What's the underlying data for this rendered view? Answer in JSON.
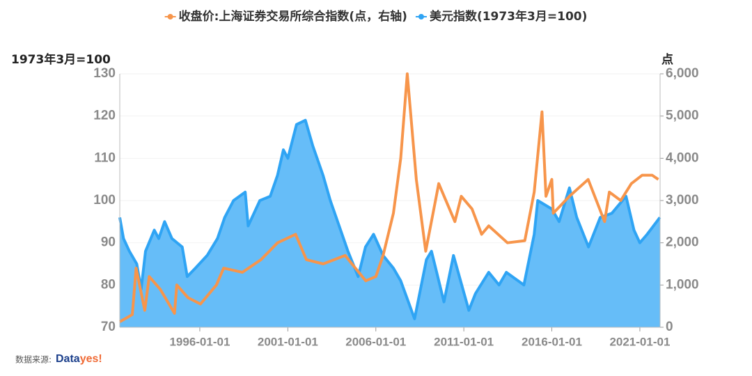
{
  "chart_data": {
    "type": "line",
    "legend_position": "top",
    "ylabel": "1973年3月=100",
    "y2label": "点",
    "source": "数据来源:",
    "source_logo": [
      "Data",
      "yes!"
    ],
    "xlim": [
      "1991-06-15",
      "2022-02-25"
    ],
    "xticks": [
      "1996-01-01",
      "2001-01-01",
      "2006-01-01",
      "2011-01-01",
      "2016-01-01",
      "2021-01-01"
    ],
    "ylim": [
      70,
      130
    ],
    "yticks": [
      70,
      80,
      90,
      100,
      110,
      120,
      130
    ],
    "y2lim": [
      0,
      6000
    ],
    "y2ticks": [
      0,
      {
        "value": 1000,
        "label": "1,000"
      },
      {
        "value": 2000,
        "label": "2,000"
      },
      {
        "value": 3000,
        "label": "3,000"
      },
      {
        "value": 4000,
        "label": "4,000"
      },
      {
        "value": 5000,
        "label": "5,000"
      },
      {
        "value": 6000,
        "label": "6,000"
      }
    ],
    "series": [
      {
        "name": "收盘价:上海证券交易所综合指数(点，右轴)",
        "color": "#f7954b",
        "axis": "y2",
        "x": [
          "1991-06-15",
          "1992-03-01",
          "1992-05-20",
          "1992-11-15",
          "1993-02-15",
          "1993-10-01",
          "1994-07-25",
          "1994-09-10",
          "1995-05-01",
          "1996-01-15",
          "1996-12-10",
          "1997-05-10",
          "1998-06-01",
          "1999-06-25",
          "2000-06-01",
          "2001-06-10",
          "2002-01-20",
          "2003-01-05",
          "2004-04-05",
          "2005-06-05",
          "2006-01-01",
          "2006-06-01",
          "2007-01-01",
          "2007-06-01",
          "2007-10-16",
          "2008-04-20",
          "2008-11-01",
          "2009-07-30",
          "2010-06-30",
          "2010-11-10",
          "2011-06-20",
          "2012-01-05",
          "2012-06-01",
          "2013-06-25",
          "2014-06-20",
          "2014-12-31",
          "2015-06-12",
          "2015-09-01",
          "2016-01-01",
          "2016-02-01",
          "2017-01-01",
          "2018-01-25",
          "2018-12-31",
          "2019-04-08",
          "2019-12-01",
          "2020-07-08",
          "2021-02-18",
          "2021-09-13",
          "2022-01-20"
        ],
        "values": [
          130,
          300,
          1400,
          400,
          1200,
          900,
          330,
          1000,
          700,
          550,
          1000,
          1400,
          1300,
          1600,
          2000,
          2200,
          1600,
          1500,
          1700,
          1100,
          1200,
          1700,
          2700,
          4000,
          6000,
          3500,
          1800,
          3400,
          2500,
          3100,
          2800,
          2200,
          2400,
          2000,
          2050,
          3200,
          5100,
          3100,
          3500,
          2700,
          3100,
          3500,
          2500,
          3200,
          3000,
          3400,
          3600,
          3600,
          3500
        ]
      },
      {
        "name": "美元指数(1973年3月=100)",
        "color": "#2fa4f4",
        "fill": "#66bdf8",
        "x": [
          "1991-06-15",
          "1991-09-01",
          "1992-01-01",
          "1992-06-01",
          "1992-09-01",
          "1992-12-01",
          "1993-06-01",
          "1993-09-01",
          "1994-01-01",
          "1994-06-01",
          "1995-01-01",
          "1995-04-15",
          "1995-10-01",
          "1996-06-01",
          "1997-01-01",
          "1997-06-01",
          "1997-12-01",
          "1998-08-01",
          "1998-10-01",
          "1999-06-01",
          "2000-01-01",
          "2000-06-01",
          "2000-10-01",
          "2001-01-01",
          "2001-07-01",
          "2002-01-01",
          "2002-06-01",
          "2003-01-01",
          "2003-06-01",
          "2004-01-01",
          "2004-06-01",
          "2004-12-31",
          "2005-06-01",
          "2005-11-15",
          "2006-06-01",
          "2007-01-01",
          "2007-06-01",
          "2008-03-15",
          "2008-11-15",
          "2009-03-01",
          "2009-11-15",
          "2010-06-01",
          "2011-04-15",
          "2011-09-01",
          "2012-06-01",
          "2013-01-01",
          "2013-06-01",
          "2014-06-01",
          "2015-01-01",
          "2015-03-15",
          "2016-01-01",
          "2016-06-01",
          "2017-01-01",
          "2017-06-01",
          "2018-02-01",
          "2018-10-01",
          "2019-06-01",
          "2020-03-20",
          "2020-09-01",
          "2021-01-01",
          "2021-06-01",
          "2022-02-20"
        ],
        "values": [
          96,
          91,
          88,
          85,
          79,
          88,
          93,
          91,
          95,
          91,
          89,
          82,
          84,
          87,
          91,
          96,
          100,
          102,
          94,
          100,
          101,
          106,
          112,
          110,
          118,
          119,
          113,
          106,
          100,
          93,
          88,
          82,
          89,
          92,
          87,
          84,
          81,
          72,
          86,
          88,
          76,
          87,
          74,
          78,
          83,
          80,
          83,
          80,
          92,
          100,
          98,
          95,
          103,
          96,
          89,
          96,
          97,
          101,
          93,
          90,
          92,
          96
        ]
      }
    ]
  }
}
